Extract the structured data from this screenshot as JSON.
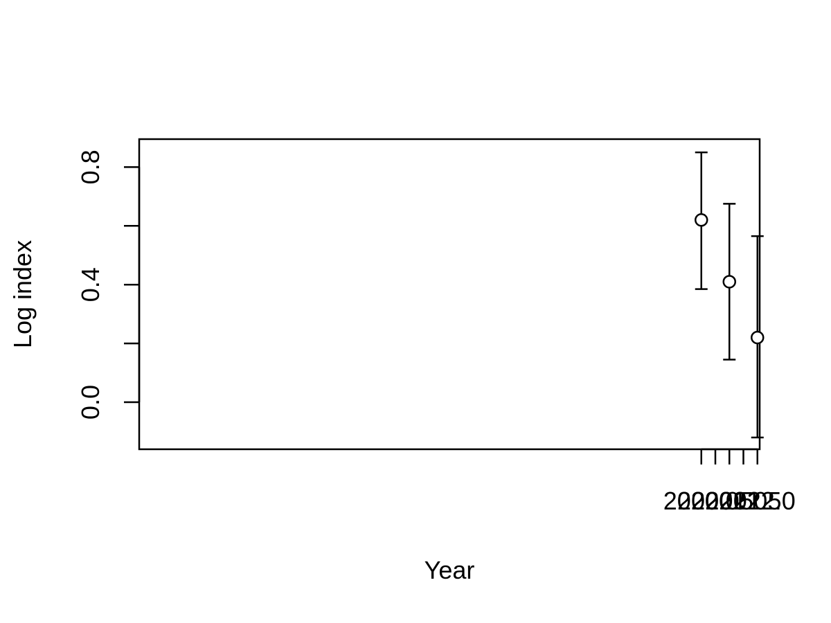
{
  "chart_data": {
    "type": "scatter",
    "title": "",
    "xlabel": "Year",
    "ylabel": "Log index",
    "xlim": [
      1999.96,
      2022.08
    ],
    "ylim": [
      -0.16,
      0.895
    ],
    "xticks": [
      2020.0,
      2020.5,
      2021.0,
      2021.5,
      2022.0
    ],
    "xtick_labels": [
      "2020.0",
      "2020.5",
      "2021.0",
      "2021.5",
      "2022.0"
    ],
    "yticks": [
      0.0,
      0.2,
      0.4,
      0.6,
      0.8
    ],
    "ytick_labels": [
      "0.0",
      "",
      "0.4",
      "",
      "0.8"
    ],
    "grid": false,
    "marker": "open-circle",
    "points": [
      {
        "x": 2020.0,
        "y": 0.62,
        "lower": 0.385,
        "upper": 0.85
      },
      {
        "x": 2021.0,
        "y": 0.41,
        "lower": 0.145,
        "upper": 0.675
      },
      {
        "x": 2022.0,
        "y": 0.22,
        "lower": -0.12,
        "upper": 0.565
      }
    ]
  }
}
